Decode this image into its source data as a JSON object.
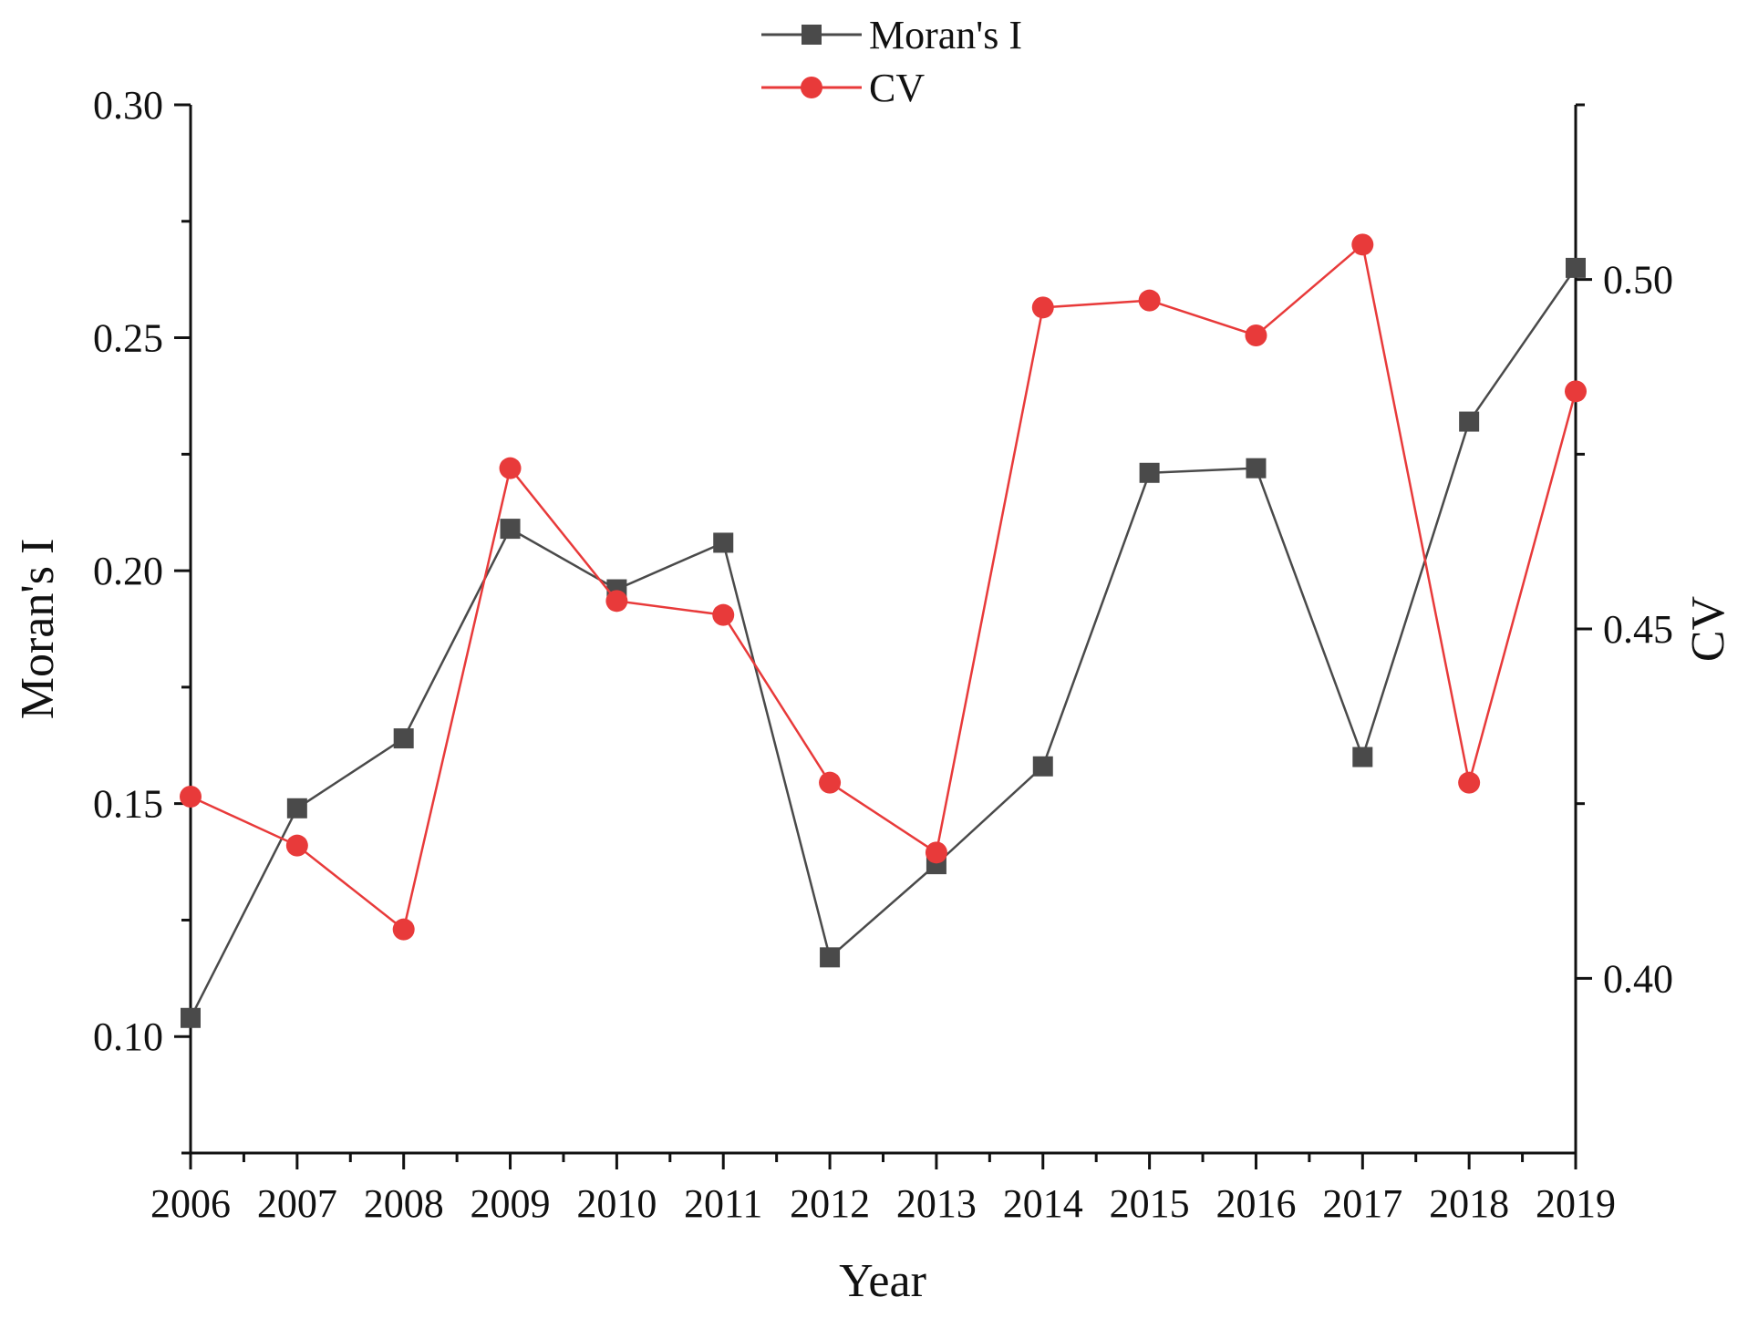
{
  "chart_data": {
    "type": "line",
    "title": "",
    "xlabel": "Year",
    "ylabel": "Moran's I",
    "y2label": "CV",
    "x": [
      2006,
      2007,
      2008,
      2009,
      2010,
      2011,
      2012,
      2013,
      2014,
      2015,
      2016,
      2017,
      2018,
      2019
    ],
    "x_tick_labels": [
      "2006",
      "2007",
      "2008",
      "2009",
      "2010",
      "2011",
      "2012",
      "2013",
      "2014",
      "2015",
      "2016",
      "2017",
      "2018",
      "2019"
    ],
    "ylim": [
      0.075,
      0.3
    ],
    "y_ticks": [
      0.1,
      0.15,
      0.2,
      0.25,
      0.3
    ],
    "y_tick_labels": [
      "0.10",
      "0.15",
      "0.20",
      "0.25",
      "0.30"
    ],
    "y2lim": [
      0.375,
      0.525
    ],
    "y2_ticks": [
      0.4,
      0.45,
      0.5
    ],
    "y2_tick_labels": [
      "0.40",
      "0.45",
      "0.50"
    ],
    "grid": false,
    "legend_position": "top-center",
    "series": [
      {
        "name": "Moran's I",
        "axis": "left",
        "marker": "square",
        "color": "#4a4a4a",
        "values": [
          0.104,
          0.149,
          0.164,
          0.209,
          0.196,
          0.206,
          0.117,
          0.137,
          0.158,
          0.221,
          0.222,
          0.16,
          0.232,
          0.265
        ]
      },
      {
        "name": "CV",
        "axis": "right",
        "marker": "circle",
        "color": "#e83a3a",
        "values": [
          0.426,
          0.419,
          0.407,
          0.473,
          0.454,
          0.452,
          0.428,
          0.418,
          0.496,
          0.497,
          0.492,
          0.505,
          0.428,
          0.484
        ]
      }
    ]
  }
}
